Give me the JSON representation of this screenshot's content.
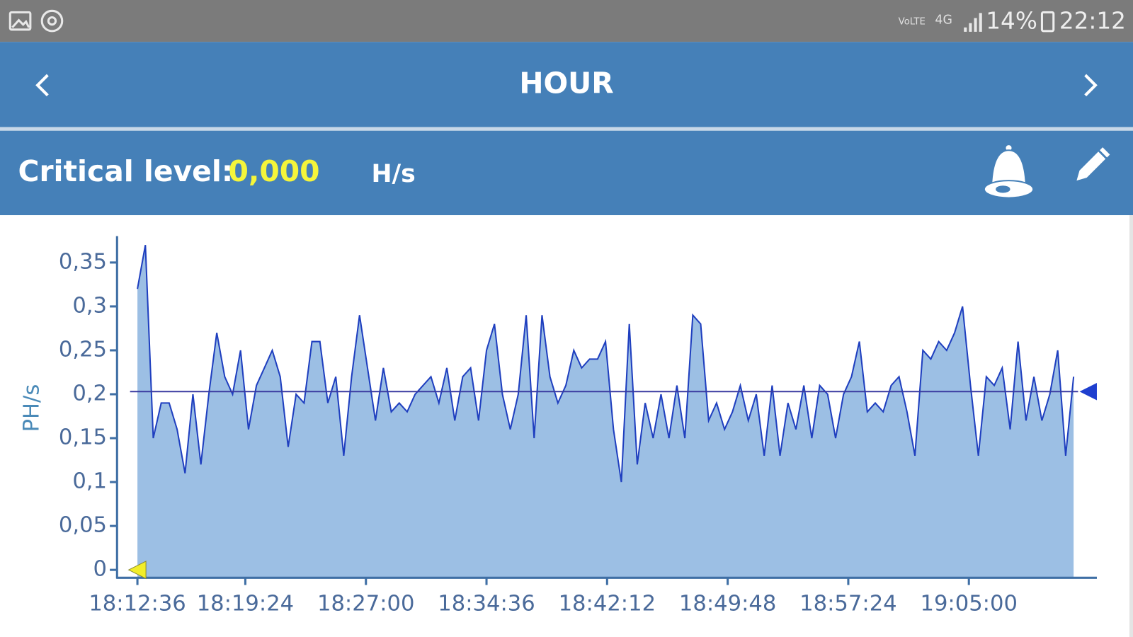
{
  "status_bar": {
    "volte": "VoLTE",
    "network": "4G",
    "battery": "14%",
    "time": "22:12"
  },
  "header": {
    "title": "HOUR"
  },
  "critical_level": {
    "label": "Critical level:",
    "value": 0,
    "value_label": "0,000",
    "unit": "H/s"
  },
  "chart_data": {
    "type": "area",
    "y_label": "PH/s",
    "xlim": [
      -77,
      3628
    ],
    "ylim": [
      -0.009,
      0.38
    ],
    "xticks": [
      {
        "value": 0,
        "label": "18:12:36"
      },
      {
        "value": 408,
        "label": "18:19:24"
      },
      {
        "value": 864,
        "label": "18:27:00"
      },
      {
        "value": 1320,
        "label": "18:34:36"
      },
      {
        "value": 1776,
        "label": "18:42:12"
      },
      {
        "value": 2232,
        "label": "18:49:48"
      },
      {
        "value": 2688,
        "label": "18:57:24"
      },
      {
        "value": 3144,
        "label": "19:05:00"
      }
    ],
    "yticks": [
      0,
      {
        "value": 0.05,
        "label": "0,05"
      },
      {
        "value": 0.1,
        "label": "0,1"
      },
      {
        "value": 0.15,
        "label": "0,15"
      },
      {
        "value": 0.2,
        "label": "0,2"
      },
      {
        "value": 0.25,
        "label": "0,25"
      },
      {
        "value": 0.3,
        "label": "0,3"
      },
      {
        "value": 0.35,
        "label": "0,35"
      }
    ],
    "mean_line": 0.203,
    "mean_color": "#3a3aa0",
    "critical_color": "#f2ee2a",
    "x": [
      0,
      30,
      60,
      90,
      120,
      150,
      180,
      210,
      240,
      270,
      300,
      330,
      360,
      390,
      420,
      450,
      480,
      510,
      540,
      570,
      600,
      630,
      660,
      690,
      720,
      750,
      780,
      810,
      840,
      870,
      900,
      930,
      960,
      990,
      1020,
      1050,
      1080,
      1110,
      1140,
      1170,
      1200,
      1230,
      1260,
      1290,
      1320,
      1350,
      1380,
      1410,
      1440,
      1470,
      1500,
      1530,
      1560,
      1590,
      1620,
      1650,
      1680,
      1710,
      1740,
      1770,
      1800,
      1830,
      1860,
      1890,
      1920,
      1950,
      1980,
      2010,
      2040,
      2070,
      2100,
      2130,
      2160,
      2190,
      2220,
      2250,
      2280,
      2310,
      2340,
      2370,
      2400,
      2430,
      2460,
      2490,
      2520,
      2550,
      2580,
      2610,
      2640,
      2670,
      2700,
      2730,
      2760,
      2790,
      2820,
      2850,
      2880,
      2910,
      2940,
      2970,
      3000,
      3030,
      3060,
      3090,
      3120,
      3150,
      3180,
      3210,
      3240,
      3270,
      3300,
      3330,
      3360,
      3390,
      3420,
      3450,
      3480,
      3510,
      3540
    ],
    "series": [
      {
        "color": "#1f3fbf",
        "fill": "#9cbfe4",
        "values": [
          0.32,
          0.37,
          0.15,
          0.19,
          0.19,
          0.16,
          0.11,
          0.2,
          0.12,
          0.2,
          0.27,
          0.22,
          0.2,
          0.25,
          0.16,
          0.21,
          0.23,
          0.25,
          0.22,
          0.14,
          0.2,
          0.19,
          0.26,
          0.26,
          0.19,
          0.22,
          0.13,
          0.22,
          0.29,
          0.23,
          0.17,
          0.23,
          0.18,
          0.19,
          0.18,
          0.2,
          0.21,
          0.22,
          0.19,
          0.23,
          0.17,
          0.22,
          0.23,
          0.17,
          0.25,
          0.28,
          0.2,
          0.16,
          0.2,
          0.29,
          0.15,
          0.29,
          0.22,
          0.19,
          0.21,
          0.25,
          0.23,
          0.24,
          0.24,
          0.26,
          0.16,
          0.1,
          0.28,
          0.12,
          0.19,
          0.15,
          0.2,
          0.15,
          0.21,
          0.15,
          0.29,
          0.28,
          0.17,
          0.19,
          0.16,
          0.18,
          0.21,
          0.17,
          0.2,
          0.13,
          0.21,
          0.13,
          0.19,
          0.16,
          0.21,
          0.15,
          0.21,
          0.2,
          0.15,
          0.2,
          0.22,
          0.26,
          0.18,
          0.19,
          0.18,
          0.21,
          0.22,
          0.18,
          0.13,
          0.25,
          0.24,
          0.26,
          0.25,
          0.27,
          0.3,
          0.21,
          0.13,
          0.22,
          0.21,
          0.23,
          0.16,
          0.26,
          0.17,
          0.22,
          0.17,
          0.2,
          0.25,
          0.13,
          0.22
        ]
      }
    ]
  }
}
